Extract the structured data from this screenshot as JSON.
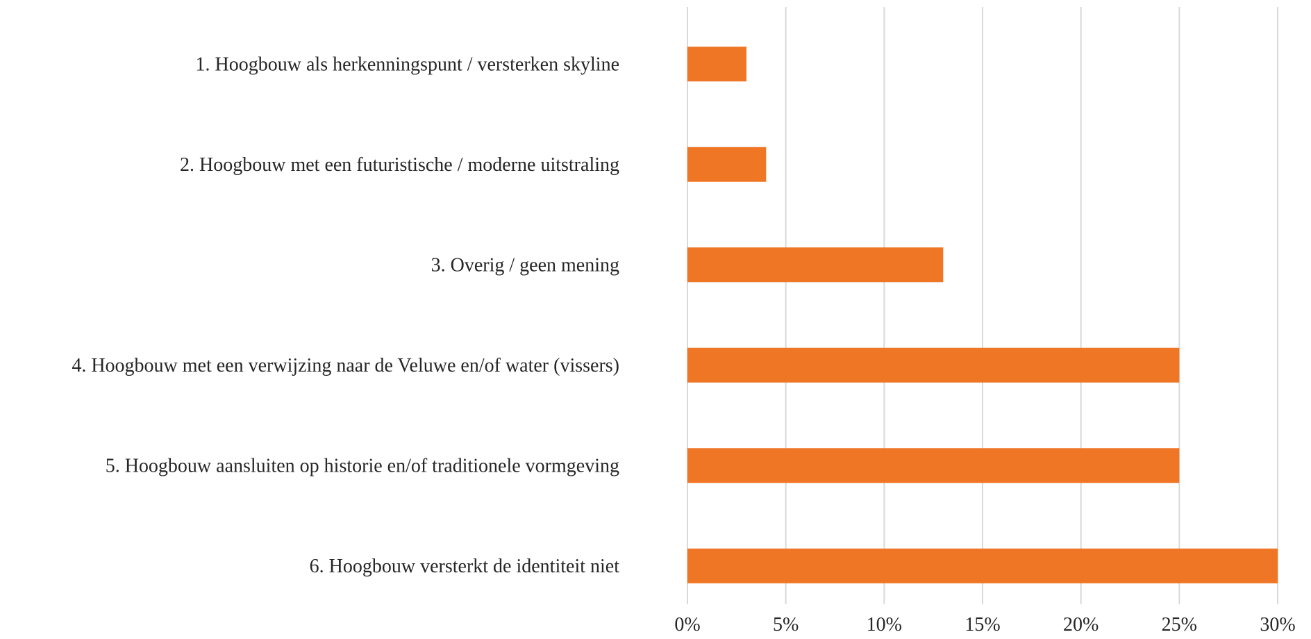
{
  "colors": {
    "bar": "#EE7624",
    "grid": "#D9D9D9",
    "text": "#262626"
  },
  "chart_data": {
    "type": "bar",
    "orientation": "horizontal",
    "categories": [
      "1. Hoogbouw als herkenningspunt / versterken skyline",
      "2. Hoogbouw met een futuristische / moderne uitstraling",
      "3. Overig / geen mening",
      "4. Hoogbouw met een verwijzing naar de Veluwe en/of water (vissers)",
      "5. Hoogbouw aansluiten op historie en/of traditionele vormgeving",
      "6. Hoogbouw versterkt de identiteit niet"
    ],
    "values": [
      3,
      4,
      13,
      25,
      25,
      30
    ],
    "xlim": [
      0,
      30
    ],
    "xticks": [
      0,
      5,
      10,
      15,
      20,
      25,
      30
    ],
    "xtick_labels": [
      "0%",
      "5%",
      "10%",
      "15%",
      "20%",
      "25%",
      "30%"
    ],
    "grid": "vertical",
    "title": "",
    "xlabel": "",
    "ylabel": ""
  }
}
